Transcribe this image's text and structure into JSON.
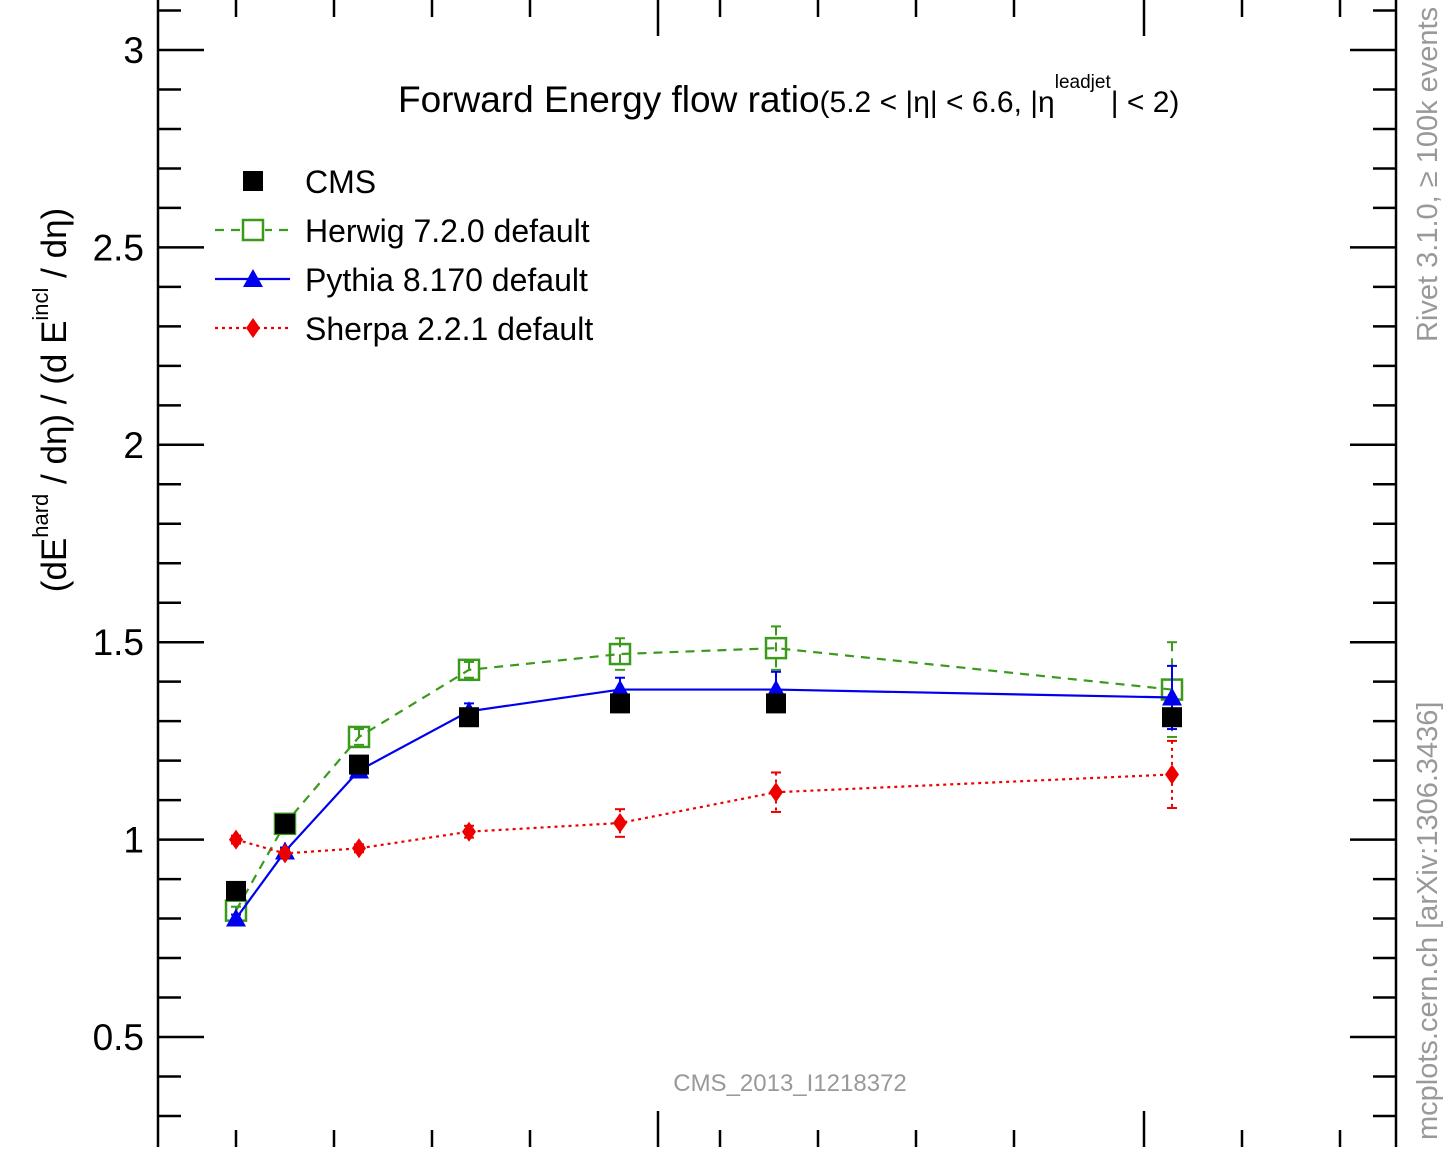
{
  "chart_data": {
    "type": "scatter",
    "title_main": "Forward Energy flow ratio",
    "title_range_a": "(5.2 < |η| < 6.6, |η",
    "title_range_sup": "leadjet",
    "title_range_b": "| < 2)",
    "ylabel": {
      "p1": "(dE",
      "s1": "hard",
      "p2": " / dη) / (d E",
      "s2": "incl",
      "p3": " / dη)"
    },
    "ylim": [
      0.28,
      3.12
    ],
    "yticks": [
      0.5,
      1,
      1.5,
      2,
      2.5,
      3
    ],
    "ytick_labels": [
      "0.5",
      "1",
      "1.5",
      "2",
      "2.5",
      "3"
    ],
    "grid": false,
    "legend_position": "top-left",
    "watermark": "CMS_2013_I1218372",
    "right_label_top": "Rivet 3.1.0, ≥ 100k events",
    "right_label_bottom": "mcplots.cern.ch [arXiv:1306.3436]",
    "series": [
      {
        "name": "CMS",
        "color": "#000000",
        "marker": "square-filled",
        "line": "none",
        "points": [
          {
            "y": 0.87,
            "err": 0.02
          },
          {
            "y": 1.04,
            "err": 0.02
          },
          {
            "y": 1.19,
            "err": 0.02
          },
          {
            "y": 1.31,
            "err": 0.02
          },
          {
            "y": 1.345,
            "err": 0.02
          },
          {
            "y": 1.345,
            "err": 0.02
          },
          {
            "y": 1.31,
            "err": 0.02
          }
        ]
      },
      {
        "name": "Herwig 7.2.0 default",
        "color": "#3a9a1a",
        "marker": "square-open",
        "line": "dashed",
        "points": [
          {
            "y": 0.82,
            "err": 0.01
          },
          {
            "y": 1.04,
            "err": 0.015
          },
          {
            "y": 1.26,
            "err": 0.02
          },
          {
            "y": 1.43,
            "err": 0.02
          },
          {
            "y": 1.47,
            "err": 0.04
          },
          {
            "y": 1.485,
            "err": 0.055
          },
          {
            "y": 1.38,
            "err": 0.12
          }
        ]
      },
      {
        "name": "Pythia 8.170 default",
        "color": "#0000ee",
        "marker": "triangle-filled",
        "line": "solid",
        "points": [
          {
            "y": 0.8,
            "err": 0.01
          },
          {
            "y": 0.97,
            "err": 0.01
          },
          {
            "y": 1.175,
            "err": 0.015
          },
          {
            "y": 1.325,
            "err": 0.02
          },
          {
            "y": 1.38,
            "err": 0.03
          },
          {
            "y": 1.38,
            "err": 0.045
          },
          {
            "y": 1.36,
            "err": 0.08
          }
        ]
      },
      {
        "name": "Sherpa 2.2.1 default",
        "color": "#ee0000",
        "marker": "diamond-filled",
        "line": "dotted",
        "points": [
          {
            "y": 1.0,
            "err": 0.01
          },
          {
            "y": 0.965,
            "err": 0.01
          },
          {
            "y": 0.978,
            "err": 0.01
          },
          {
            "y": 1.02,
            "err": 0.015
          },
          {
            "y": 1.042,
            "err": 0.035
          },
          {
            "y": 1.12,
            "err": 0.05
          },
          {
            "y": 1.165,
            "err": 0.085
          }
        ]
      }
    ]
  }
}
